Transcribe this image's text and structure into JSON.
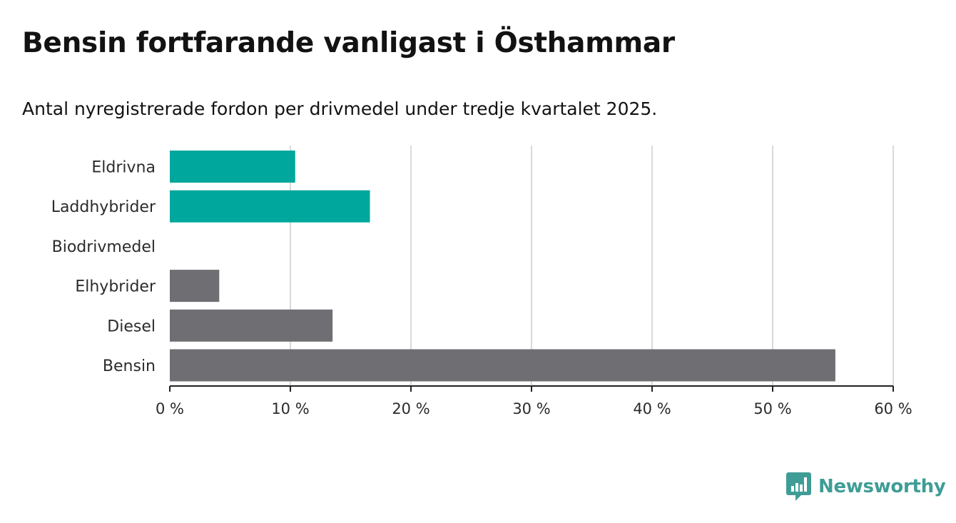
{
  "chart_data": {
    "type": "bar",
    "orientation": "horizontal",
    "title": "Bensin fortfarande vanligast i Östhammar",
    "subtitle": "Antal nyregistrerade fordon per drivmedel under tredje kvartalet 2025.",
    "categories": [
      "Eldrivna",
      "Laddhybrider",
      "Biodrivmedel",
      "Elhybrider",
      "Diesel",
      "Bensin"
    ],
    "values": [
      10.4,
      16.6,
      0,
      4.1,
      13.5,
      55.2
    ],
    "unit": "%",
    "bar_colors": [
      "#00a79d",
      "#00a79d",
      "#00a79d",
      "#6f6e73",
      "#6f6e73",
      "#6f6e73"
    ],
    "xlim": [
      0,
      60
    ],
    "x_ticks": [
      0,
      10,
      20,
      30,
      40,
      50,
      60
    ],
    "x_tick_labels": [
      "0 %",
      "10 %",
      "20 %",
      "30 %",
      "40 %",
      "50 %",
      "60 %"
    ],
    "xlabel": "",
    "ylabel": "",
    "grid": true
  },
  "branding": {
    "name": "Newsworthy",
    "logo_icon": "newsworthy-chart-bubble-icon",
    "color": "#3f9d96"
  }
}
